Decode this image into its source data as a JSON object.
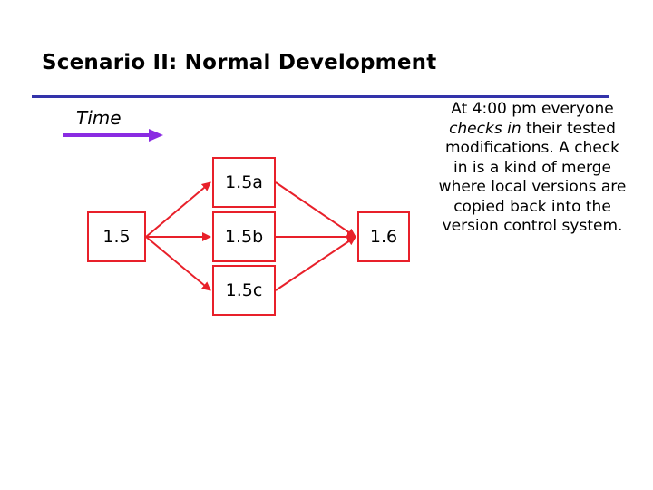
{
  "slide": {
    "title": "Scenario II: Normal Development",
    "time_label": "Time"
  },
  "nodes": {
    "v15": "1.5",
    "v15a": "1.5a",
    "v15b": "1.5b",
    "v15c": "1.5c",
    "v16": "1.6"
  },
  "note": {
    "part1": "At 4:00 pm everyone",
    "emphasis": "checks in",
    "part2": "their tested modifications.  A check in is a kind of merge where local versions are copied back into the version control system."
  },
  "colors": {
    "edge": "#e8202a",
    "time_arrow": "#8a2be2",
    "rule": "#3333aa"
  }
}
